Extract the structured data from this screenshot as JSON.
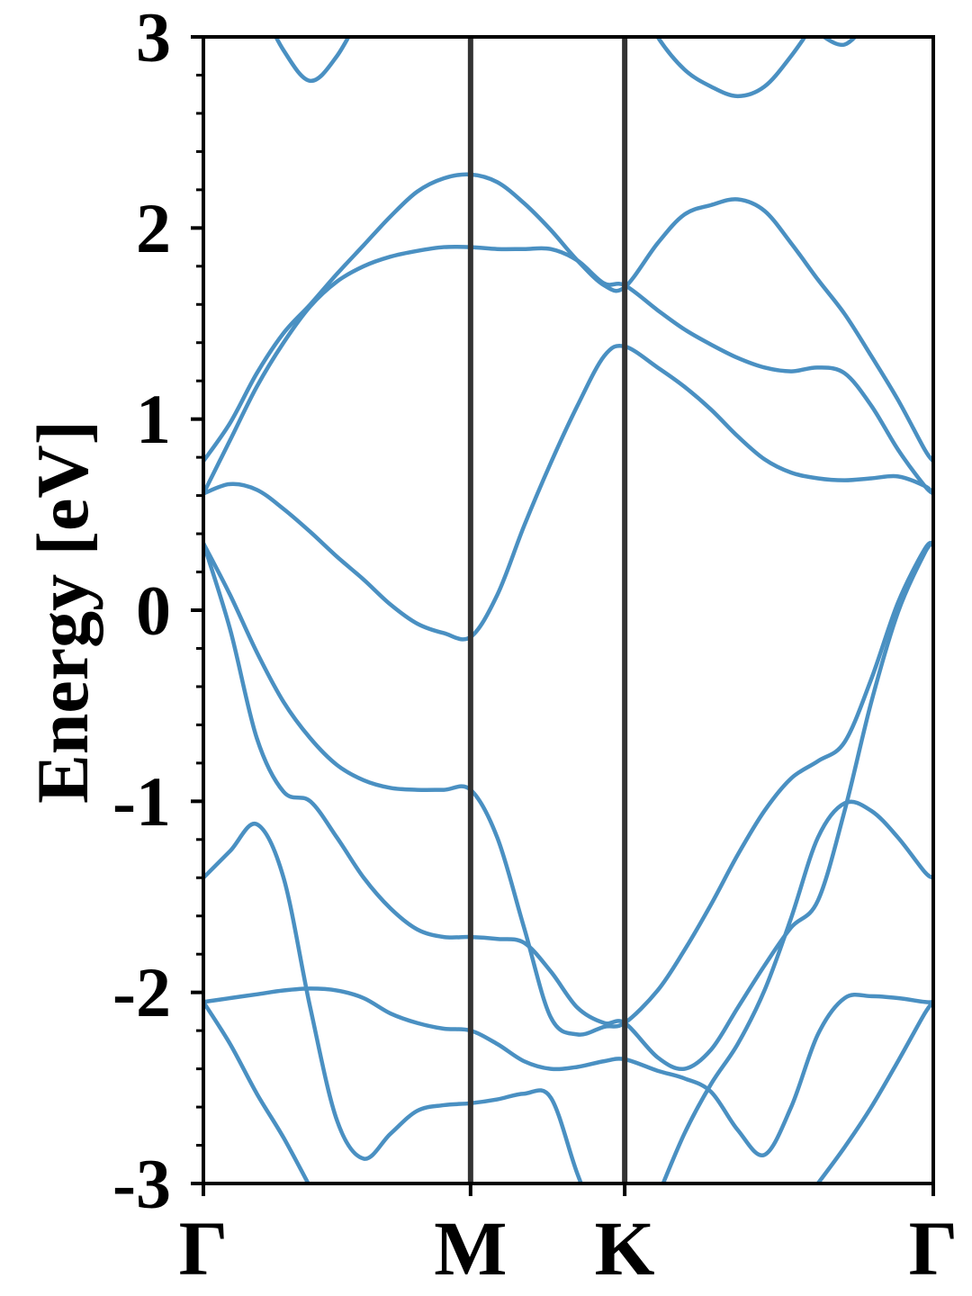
{
  "chart_data": {
    "type": "line",
    "ylabel": "Energy [eV]",
    "color": "#4a90c2",
    "xlim": [
      0,
      2.732
    ],
    "ylim": [
      -3,
      3
    ],
    "xticks": [
      {
        "value": 0,
        "label": "Γ"
      },
      {
        "value": 1,
        "label": "M"
      },
      {
        "value": 1.577,
        "label": "K"
      },
      {
        "value": 2.732,
        "label": "Γ"
      }
    ],
    "yticks": [
      -3,
      -2,
      -1,
      0,
      1,
      2,
      3
    ],
    "yminorticks": [
      -2.8,
      -2.6,
      -2.4,
      -2.2,
      -1.8,
      -1.6,
      -1.4,
      -1.2,
      -0.8,
      -0.6,
      -0.4,
      -0.2,
      0.2,
      0.4,
      0.6,
      0.8,
      1.2,
      1.4,
      1.6,
      1.8,
      2.2,
      2.4,
      2.6,
      2.8
    ],
    "x": [
      0,
      0.1,
      0.2,
      0.3,
      0.4,
      0.5,
      0.6,
      0.7,
      0.8,
      0.9,
      1.0,
      1.1,
      1.2,
      1.3,
      1.4,
      1.5,
      1.577,
      1.7,
      1.8,
      1.9,
      2.0,
      2.1,
      2.2,
      2.3,
      2.4,
      2.5,
      2.6,
      2.7,
      2.732
    ],
    "series": [
      {
        "values": [
          null,
          null,
          3.2,
          2.93,
          2.77,
          2.9,
          3.15,
          null,
          null,
          null,
          null,
          null,
          null,
          null,
          null,
          null,
          3.3,
          3.0,
          2.83,
          2.74,
          2.69,
          2.74,
          2.9,
          3.1,
          null,
          null,
          null,
          null,
          null
        ]
      },
      {
        "values": [
          null,
          null,
          null,
          null,
          null,
          null,
          null,
          null,
          null,
          null,
          null,
          null,
          null,
          null,
          null,
          null,
          null,
          null,
          null,
          null,
          null,
          null,
          null,
          3.02,
          2.96,
          3.1,
          null,
          null,
          null
        ]
      },
      {
        "values": [
          0.78,
          0.98,
          1.24,
          1.45,
          1.6,
          1.76,
          1.91,
          2.06,
          2.19,
          2.26,
          2.28,
          2.24,
          2.13,
          1.99,
          1.83,
          1.7,
          1.69,
          1.92,
          2.07,
          2.12,
          2.15,
          2.09,
          1.92,
          1.73,
          1.55,
          1.33,
          1.1,
          0.84,
          0.78
        ]
      },
      {
        "values": [
          0.61,
          0.89,
          1.17,
          1.4,
          1.59,
          1.72,
          1.8,
          1.85,
          1.88,
          1.9,
          1.9,
          1.89,
          1.89,
          1.89,
          1.83,
          1.71,
          1.7,
          1.57,
          1.47,
          1.39,
          1.32,
          1.27,
          1.25,
          1.27,
          1.24,
          1.07,
          0.84,
          0.65,
          0.61
        ]
      },
      {
        "values": [
          0.61,
          0.66,
          0.63,
          0.53,
          0.41,
          0.28,
          0.16,
          0.03,
          -0.07,
          -0.12,
          -0.14,
          0.08,
          0.44,
          0.77,
          1.07,
          1.33,
          1.38,
          1.27,
          1.17,
          1.05,
          0.91,
          0.79,
          0.72,
          0.69,
          0.68,
          0.69,
          0.7,
          0.65,
          0.61
        ]
      },
      {
        "values": [
          0.35,
          0.08,
          -0.22,
          -0.48,
          -0.67,
          -0.81,
          -0.89,
          -0.93,
          -0.94,
          -0.94,
          -0.94,
          -1.19,
          -1.66,
          -2.13,
          -2.22,
          -2.18,
          -2.16,
          -1.99,
          -1.78,
          -1.54,
          -1.28,
          -1.05,
          -0.88,
          -0.79,
          -0.69,
          -0.36,
          0.04,
          0.32,
          0.35
        ]
      },
      {
        "values": [
          0.35,
          -0.1,
          -0.67,
          -0.95,
          -1.0,
          -1.19,
          -1.4,
          -1.56,
          -1.67,
          -1.71,
          -1.71,
          -1.72,
          -1.74,
          -1.89,
          -2.08,
          -2.16,
          -2.16,
          -2.34,
          -2.4,
          -2.3,
          -2.08,
          -1.86,
          -1.66,
          -1.52,
          -1.05,
          -0.48,
          -0.01,
          0.3,
          0.35
        ]
      },
      {
        "values": [
          -1.4,
          -1.26,
          -1.12,
          -1.4,
          -2.08,
          -2.67,
          -2.87,
          -2.74,
          -2.62,
          -2.59,
          -2.58,
          -2.56,
          -2.53,
          -2.55,
          -2.95,
          -3.3,
          null,
          -3.07,
          -2.74,
          -2.48,
          -2.27,
          -1.99,
          -1.61,
          -1.19,
          -1.01,
          -1.05,
          -1.19,
          -1.37,
          -1.4
        ]
      },
      {
        "values": [
          -2.05,
          -2.03,
          -2.01,
          -1.99,
          -1.98,
          -1.99,
          -2.03,
          -2.11,
          -2.16,
          -2.19,
          -2.2,
          -2.27,
          -2.36,
          -2.4,
          -2.39,
          -2.36,
          -2.35,
          -2.41,
          -2.45,
          -2.52,
          -2.72,
          -2.85,
          -2.6,
          -2.22,
          -2.03,
          -2.02,
          -2.03,
          -2.05,
          -2.05
        ]
      },
      {
        "values": [
          -2.05,
          -2.27,
          -2.53,
          -2.76,
          -3.02,
          null,
          null,
          null,
          null,
          null,
          null,
          null,
          null,
          null,
          null,
          null,
          null,
          null,
          null,
          null,
          null,
          null,
          null,
          -3.0,
          -2.81,
          -2.6,
          -2.36,
          -2.11,
          -2.05
        ]
      }
    ]
  }
}
